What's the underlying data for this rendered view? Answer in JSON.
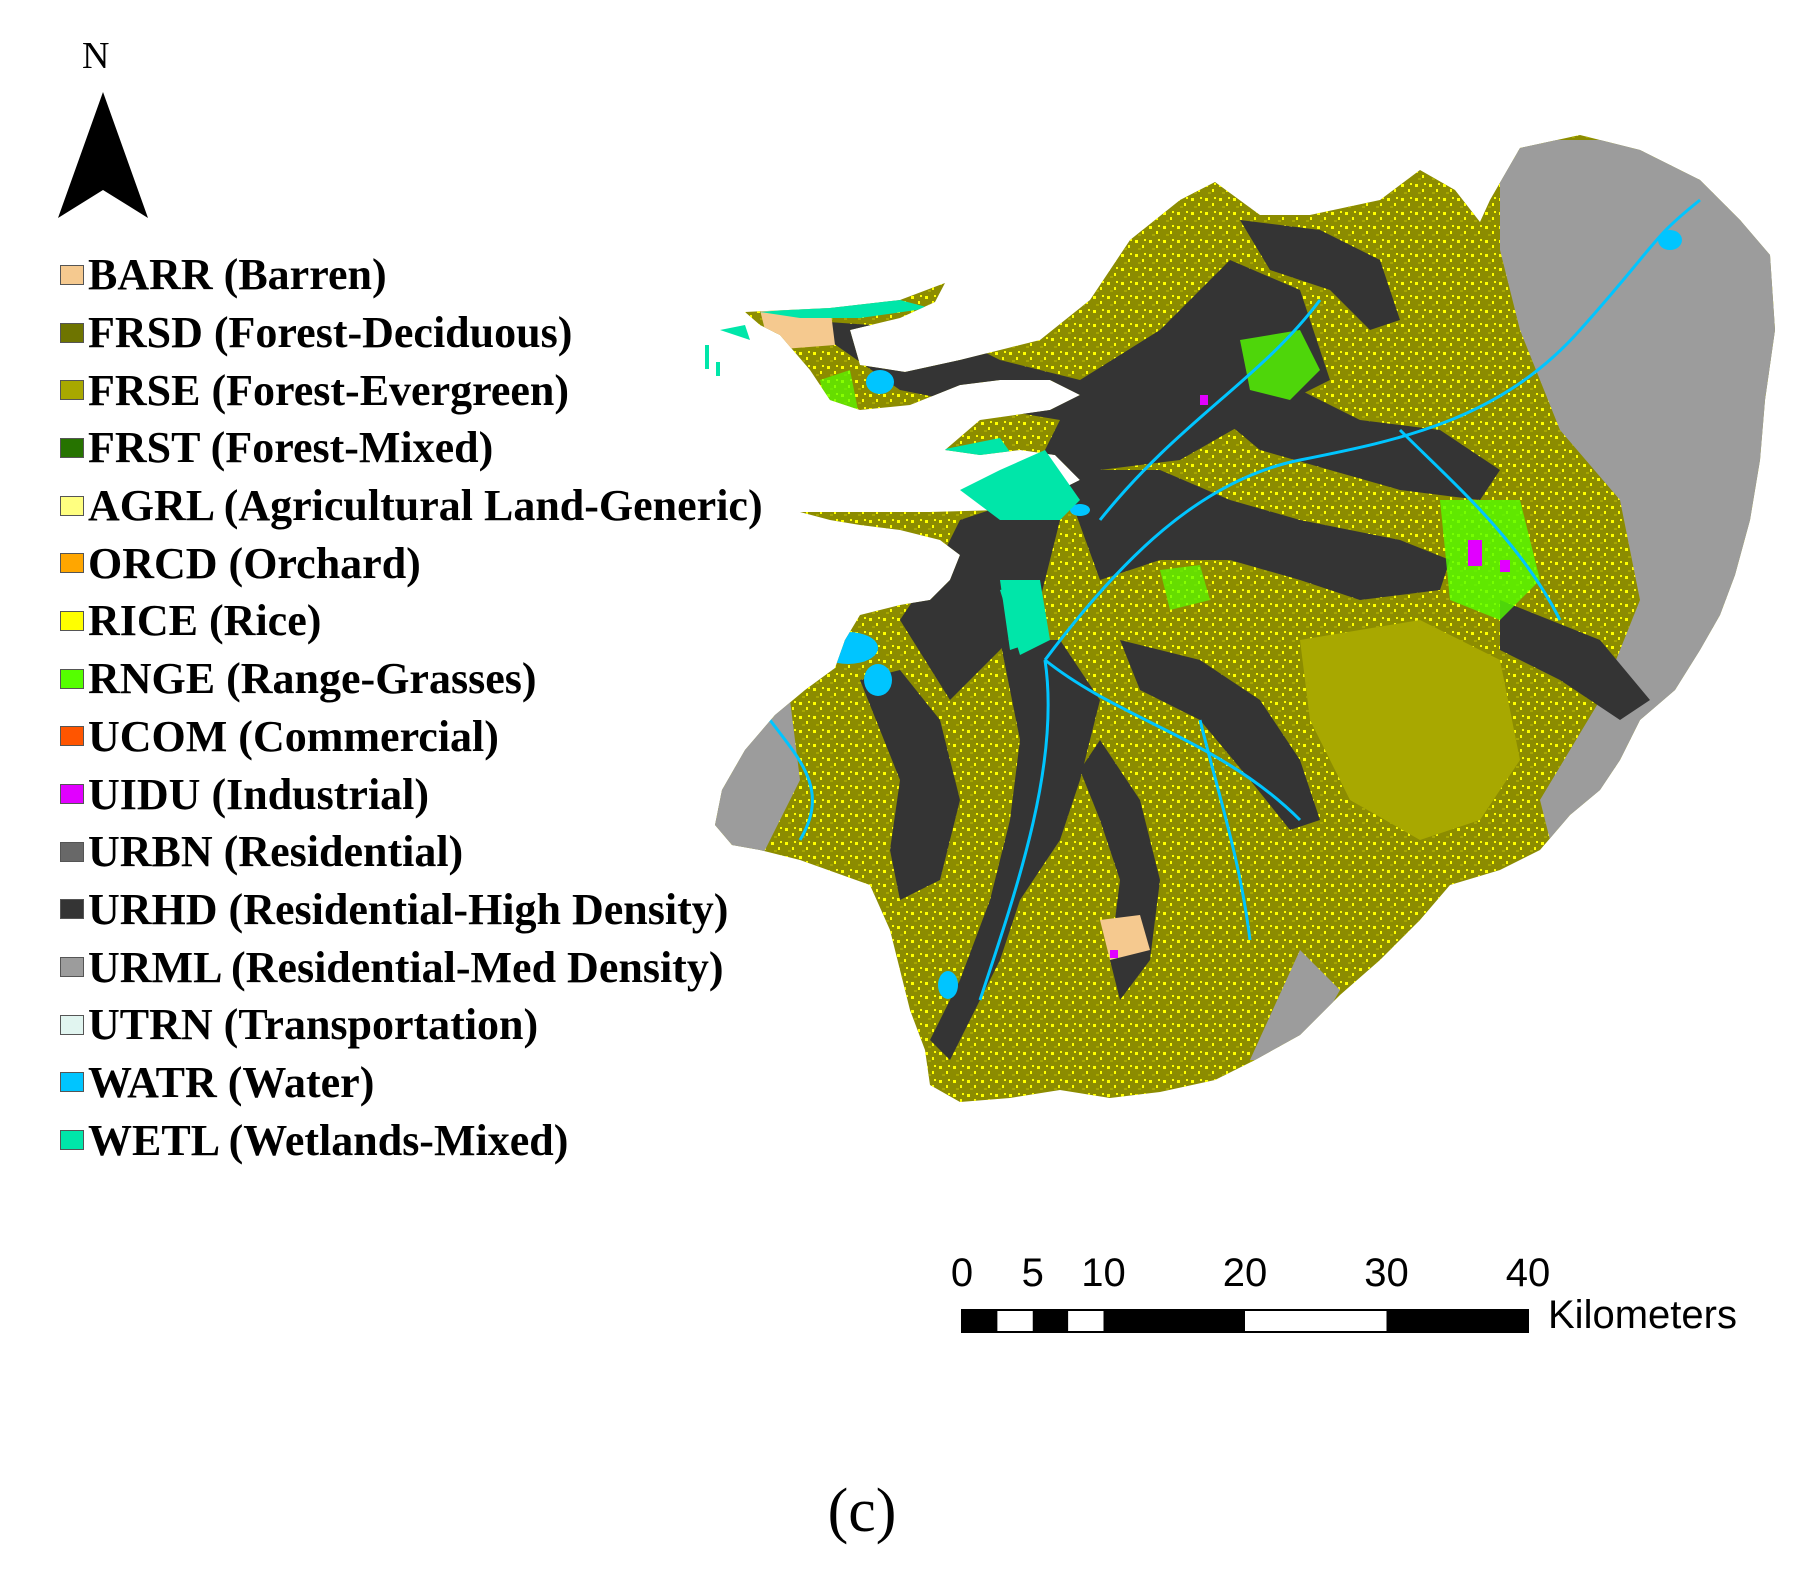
{
  "north_label": "N",
  "legend": [
    {
      "code": "BARR",
      "label": "BARR (Barren)",
      "color": "#f5c98f"
    },
    {
      "code": "FRSD",
      "label": "FRSD (Forest-Deciduous)",
      "color": "#6e7400"
    },
    {
      "code": "FRSE",
      "label": "FRSE (Forest-Evergreen)",
      "color": "#a8a800"
    },
    {
      "code": "FRST",
      "label": "FRST (Forest-Mixed)",
      "color": "#267300"
    },
    {
      "code": "AGRL",
      "label": "AGRL (Agricultural Land-Generic)",
      "color": "#ffff80"
    },
    {
      "code": "ORCD",
      "label": "ORCD (Orchard)",
      "color": "#ffa600"
    },
    {
      "code": "RICE",
      "label": "RICE (Rice)",
      "color": "#ffff00"
    },
    {
      "code": "RNGE",
      "label": "RNGE (Range-Grasses)",
      "color": "#55ff00"
    },
    {
      "code": "UCOM",
      "label": "UCOM (Commercial)",
      "color": "#ff5500"
    },
    {
      "code": "UIDU",
      "label": "UIDU (Industrial)",
      "color": "#e100ff"
    },
    {
      "code": "URBN",
      "label": "URBN (Residential)",
      "color": "#686868"
    },
    {
      "code": "URHD",
      "label": "URHD (Residential-High Density)",
      "color": "#343434"
    },
    {
      "code": "URML",
      "label": "URML (Residential-Med Density)",
      "color": "#9c9c9c"
    },
    {
      "code": "UTRN",
      "label": "UTRN (Transportation)",
      "color": "#e1f5f0"
    },
    {
      "code": "WATR",
      "label": "WATR (Water)",
      "color": "#00c5ff"
    },
    {
      "code": "WETL",
      "label": "WETL (Wetlands-Mixed)",
      "color": "#00e6a9"
    }
  ],
  "scale_bar": {
    "ticks": [
      0,
      5,
      10,
      20,
      30,
      40
    ],
    "tick_labels": [
      "0",
      "5",
      "10",
      "20",
      "30",
      "40"
    ],
    "unit": "Kilometers"
  },
  "panel_label": "(c)"
}
